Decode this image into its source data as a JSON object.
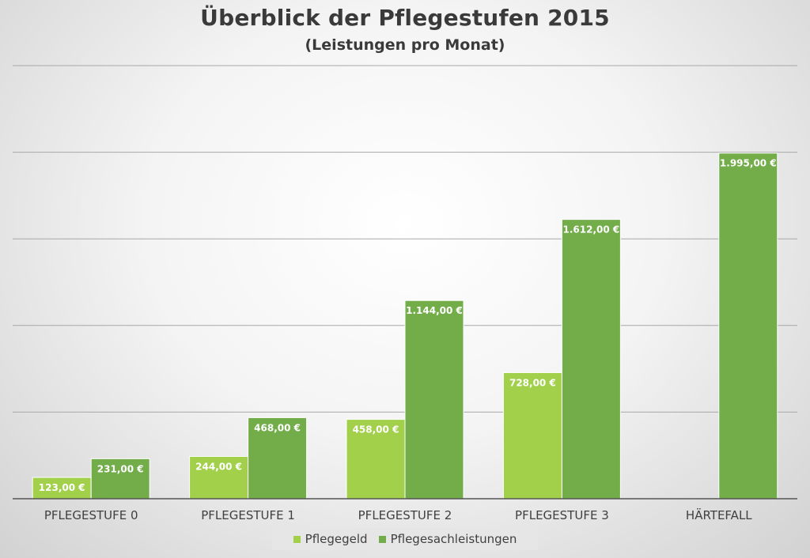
{
  "chart_data": {
    "type": "bar",
    "title": "Überblick der Pflegestufen 2015",
    "subtitle": "(Leistungen pro Monat)",
    "categories": [
      "PFLEGESTUFE 0",
      "PFLEGESTUFE 1",
      "PFLEGESTUFE 2",
      "PFLEGESTUFE 3",
      "HÄRTEFALL"
    ],
    "series": [
      {
        "name": "Pflegegeld",
        "color": "#a2d04b",
        "values": [
          123,
          244,
          458,
          728,
          null
        ],
        "labels": [
          "123,00 €",
          "244,00 €",
          "458,00 €",
          "728,00 €",
          ""
        ]
      },
      {
        "name": "Pflegesachleistungen",
        "color": "#72ad4a",
        "values": [
          231,
          468,
          1144,
          1612,
          1995
        ],
        "labels": [
          "231,00 €",
          "468,00 €",
          "1.144,00 €",
          "1.612,00 €",
          "1.995,00 €"
        ]
      }
    ],
    "ylim": [
      0,
      2500
    ],
    "y_gridlines": [
      500,
      1000,
      1500,
      2000,
      2500
    ],
    "y_tick_labels_visible": false,
    "grid": true,
    "legend_position": "bottom"
  }
}
